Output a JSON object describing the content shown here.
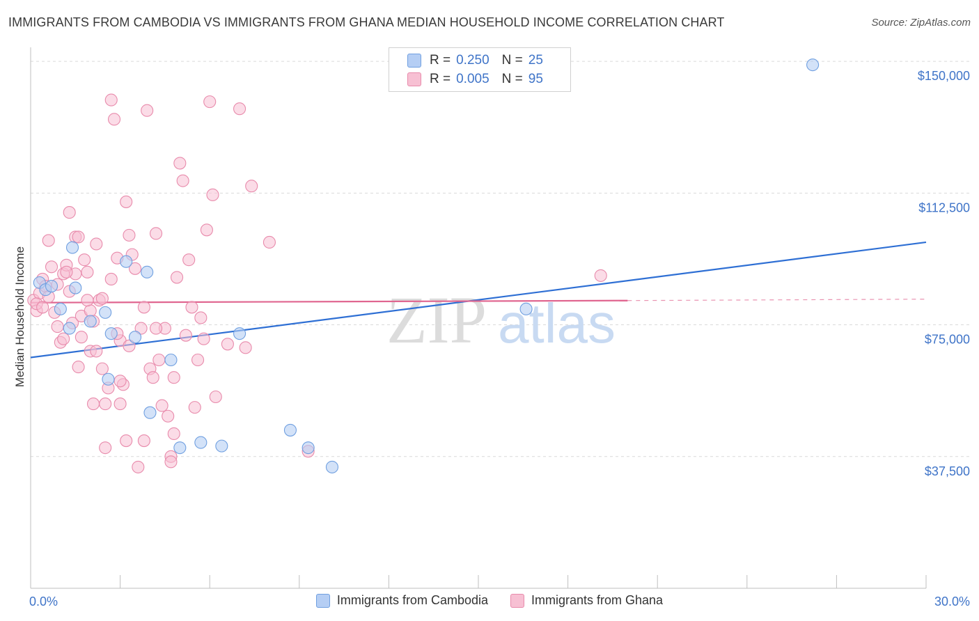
{
  "title": "IMMIGRANTS FROM CAMBODIA VS IMMIGRANTS FROM GHANA MEDIAN HOUSEHOLD INCOME CORRELATION CHART",
  "source": "Source: ZipAtlas.com",
  "watermark": {
    "zip": "ZIP",
    "atlas": "atlas"
  },
  "legend": {
    "cambodia": {
      "r_label": "R =",
      "r_value": "0.250",
      "n_label": "N =",
      "n_value": "25"
    },
    "ghana": {
      "r_label": "R =",
      "r_value": "0.005",
      "n_label": "N =",
      "n_value": "95"
    }
  },
  "colors": {
    "cambodia_fill": "#b5cef4",
    "cambodia_stroke": "#6f9fe0",
    "cambodia_line": "#2e6fd4",
    "ghana_fill": "#f7c0d3",
    "ghana_stroke": "#e88aab",
    "ghana_line": "#e06690",
    "tick": "#3f74c8"
  },
  "chart_data": {
    "type": "scatter",
    "title": "IMMIGRANTS FROM CAMBODIA VS IMMIGRANTS FROM GHANA MEDIAN HOUSEHOLD INCOME CORRELATION CHART",
    "xlabel": "",
    "ylabel": "Median Household Income",
    "xlim": [
      0,
      30
    ],
    "ylim": [
      0,
      152000
    ],
    "x_tick_labels": [
      "0.0%",
      "30.0%"
    ],
    "y_ticks": [
      37500,
      75000,
      112500,
      150000
    ],
    "y_tick_labels": [
      "$37,500",
      "$75,000",
      "$112,500",
      "$150,000"
    ],
    "series": [
      {
        "name": "Immigrants from Cambodia",
        "points": [
          [
            0.3,
            87000
          ],
          [
            0.5,
            85000
          ],
          [
            1.0,
            79500
          ],
          [
            1.4,
            97000
          ],
          [
            1.5,
            85500
          ],
          [
            1.3,
            74000
          ],
          [
            2.0,
            76000
          ],
          [
            2.5,
            78500
          ],
          [
            3.2,
            93000
          ],
          [
            3.9,
            90000
          ],
          [
            2.7,
            72500
          ],
          [
            3.5,
            71500
          ],
          [
            4.7,
            65000
          ],
          [
            2.6,
            59500
          ],
          [
            4.0,
            50000
          ],
          [
            5.0,
            40000
          ],
          [
            5.7,
            41500
          ],
          [
            6.4,
            40500
          ],
          [
            7.0,
            72500
          ],
          [
            8.7,
            45000
          ],
          [
            9.3,
            40000
          ],
          [
            10.1,
            34500
          ],
          [
            16.6,
            79500
          ],
          [
            26.2,
            149000
          ],
          [
            0.7,
            86000
          ]
        ],
        "trend": {
          "x": [
            0,
            30
          ],
          "y": [
            65700,
            98500
          ]
        }
      },
      {
        "name": "Immigrants from Ghana",
        "points": [
          [
            0.1,
            82000
          ],
          [
            0.2,
            79000
          ],
          [
            0.3,
            84000
          ],
          [
            0.4,
            88000
          ],
          [
            0.2,
            81000
          ],
          [
            0.6,
            99000
          ],
          [
            0.7,
            91500
          ],
          [
            0.8,
            78500
          ],
          [
            0.9,
            74500
          ],
          [
            1.0,
            70000
          ],
          [
            1.1,
            89500
          ],
          [
            1.2,
            92000
          ],
          [
            1.1,
            71000
          ],
          [
            1.3,
            107000
          ],
          [
            1.4,
            75500
          ],
          [
            1.5,
            100000
          ],
          [
            1.6,
            63000
          ],
          [
            1.7,
            77500
          ],
          [
            1.8,
            93500
          ],
          [
            1.9,
            90000
          ],
          [
            2.0,
            79000
          ],
          [
            2.0,
            67500
          ],
          [
            2.1,
            52500
          ],
          [
            2.2,
            98000
          ],
          [
            2.3,
            82000
          ],
          [
            2.4,
            62500
          ],
          [
            2.5,
            40000
          ],
          [
            2.6,
            57000
          ],
          [
            2.7,
            139000
          ],
          [
            2.8,
            133500
          ],
          [
            2.9,
            94000
          ],
          [
            3.0,
            52500
          ],
          [
            3.0,
            70500
          ],
          [
            3.1,
            58000
          ],
          [
            3.2,
            110000
          ],
          [
            3.3,
            100500
          ],
          [
            3.4,
            95000
          ],
          [
            3.5,
            91000
          ],
          [
            3.6,
            34500
          ],
          [
            3.7,
            74000
          ],
          [
            3.8,
            42000
          ],
          [
            3.9,
            136000
          ],
          [
            4.0,
            62500
          ],
          [
            4.1,
            60000
          ],
          [
            4.2,
            101000
          ],
          [
            4.3,
            65000
          ],
          [
            4.4,
            52000
          ],
          [
            4.5,
            74000
          ],
          [
            4.6,
            49000
          ],
          [
            4.7,
            37500
          ],
          [
            4.8,
            60000
          ],
          [
            4.9,
            88500
          ],
          [
            5.0,
            121000
          ],
          [
            5.1,
            116000
          ],
          [
            5.2,
            72000
          ],
          [
            5.3,
            93500
          ],
          [
            5.4,
            80000
          ],
          [
            5.5,
            51500
          ],
          [
            5.6,
            65000
          ],
          [
            5.7,
            77000
          ],
          [
            5.8,
            71000
          ],
          [
            5.9,
            102000
          ],
          [
            6.0,
            138500
          ],
          [
            6.1,
            112000
          ],
          [
            6.2,
            54500
          ],
          [
            6.6,
            69500
          ],
          [
            7.0,
            136500
          ],
          [
            7.2,
            68500
          ],
          [
            7.4,
            114500
          ],
          [
            8.0,
            98500
          ],
          [
            9.3,
            39000
          ],
          [
            19.1,
            89000
          ],
          [
            0.5,
            86000
          ],
          [
            0.9,
            86500
          ],
          [
            1.3,
            84500
          ],
          [
            1.6,
            100000
          ],
          [
            2.4,
            82500
          ],
          [
            2.9,
            72500
          ],
          [
            3.3,
            69000
          ],
          [
            3.8,
            80000
          ],
          [
            4.2,
            74000
          ],
          [
            4.7,
            36000
          ],
          [
            4.8,
            44000
          ],
          [
            2.2,
            67500
          ],
          [
            2.5,
            52500
          ],
          [
            3.2,
            42000
          ],
          [
            1.5,
            89500
          ],
          [
            1.7,
            71500
          ],
          [
            2.1,
            76000
          ],
          [
            3.0,
            59000
          ],
          [
            1.2,
            90000
          ],
          [
            1.9,
            82000
          ],
          [
            0.4,
            80000
          ],
          [
            0.6,
            83000
          ],
          [
            2.7,
            88000
          ]
        ],
        "trend": {
          "x": [
            0,
            20
          ],
          "y": [
            81300,
            81900
          ]
        },
        "trend_dashed_extension": {
          "x": [
            20,
            30
          ],
          "y": [
            81900,
            82300
          ]
        }
      }
    ],
    "legend": [
      {
        "name": "Immigrants from Cambodia",
        "R": 0.25,
        "N": 25
      },
      {
        "name": "Immigrants from Ghana",
        "R": 0.005,
        "N": 95
      }
    ]
  }
}
